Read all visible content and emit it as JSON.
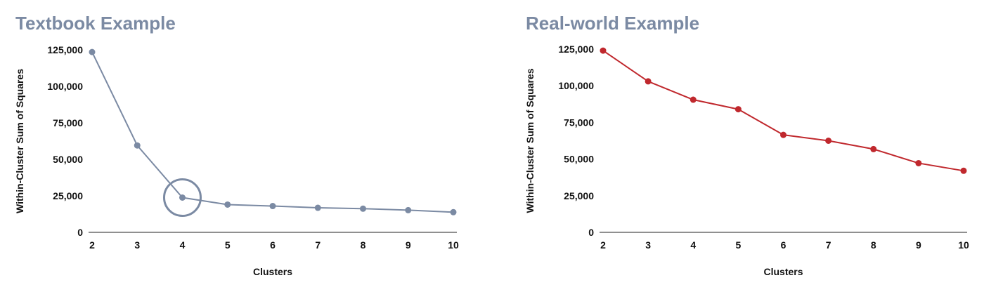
{
  "chart_data": [
    {
      "type": "line",
      "title": "Textbook Example",
      "xlabel": "Clusters",
      "ylabel": "Within-Cluster Sum of Squares",
      "x": [
        2,
        3,
        4,
        5,
        6,
        7,
        8,
        9,
        10
      ],
      "y_ticks": [
        "0",
        "25,000",
        "50,000",
        "75,000",
        "100,000",
        "125,000"
      ],
      "x_ticks": [
        "2",
        "3",
        "4",
        "5",
        "6",
        "7",
        "8",
        "9",
        "10"
      ],
      "ylim": [
        0,
        125000
      ],
      "grid": false,
      "series": [
        {
          "values": [
            123500,
            59500,
            23800,
            19000,
            18000,
            16800,
            16200,
            15200,
            13800
          ],
          "color": "#7b8aa3"
        }
      ],
      "highlight": {
        "x": 4,
        "shape": "circle",
        "color": "#7b8aa3"
      }
    },
    {
      "type": "line",
      "title": "Real-world Example",
      "xlabel": "Clusters",
      "ylabel": "Within-Cluster Sum of Squares",
      "x": [
        2,
        3,
        4,
        5,
        6,
        7,
        8,
        9,
        10
      ],
      "y_ticks": [
        "0",
        "25,000",
        "50,000",
        "75,000",
        "100,000",
        "125,000"
      ],
      "x_ticks": [
        "2",
        "3",
        "4",
        "5",
        "6",
        "7",
        "8",
        "9",
        "10"
      ],
      "ylim": [
        0,
        125000
      ],
      "grid": false,
      "series": [
        {
          "values": [
            124000,
            103000,
            90500,
            84000,
            66500,
            62500,
            56800,
            47200,
            42000
          ],
          "color": "#c0282d"
        }
      ]
    }
  ]
}
